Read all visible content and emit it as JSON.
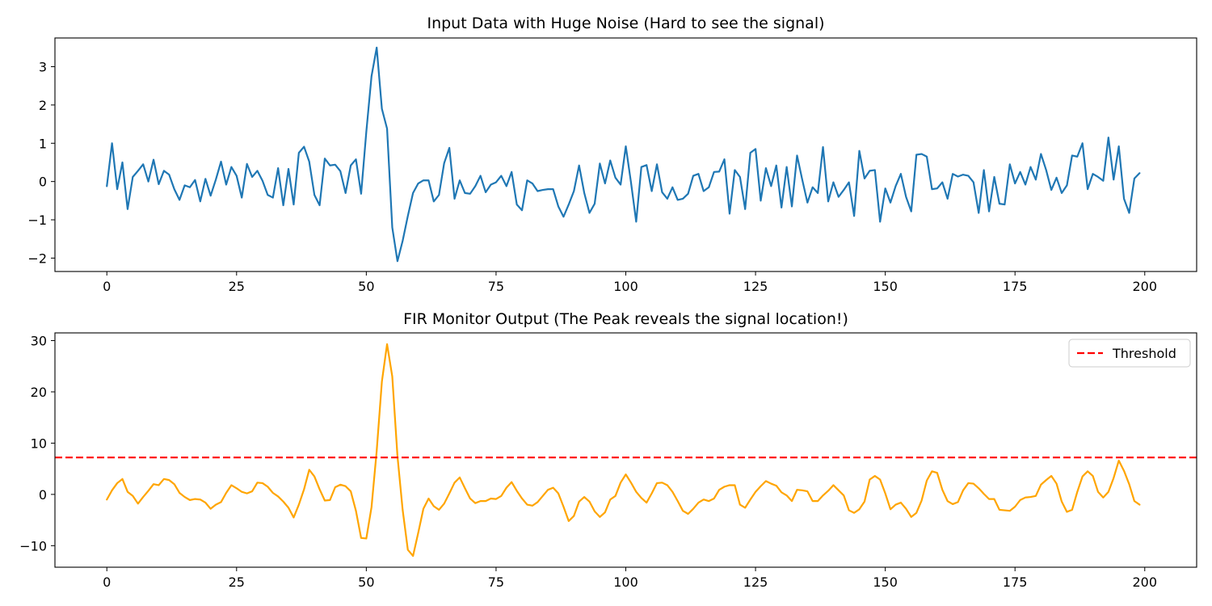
{
  "chart_data": [
    {
      "type": "line",
      "title": "Input Data with Huge Noise (Hard to see the signal)",
      "xlim": [
        -10,
        210
      ],
      "ylim": [
        -2.35,
        3.75
      ],
      "xticks": [
        0,
        25,
        50,
        75,
        100,
        125,
        150,
        175,
        200
      ],
      "yticks": [
        -2,
        -1,
        0,
        1,
        2,
        3
      ],
      "grid": false,
      "series": [
        {
          "color": "#1f77b4",
          "x_start": 0,
          "values": [
            -0.12,
            1.0,
            -0.2,
            0.5,
            -0.72,
            0.12,
            0.28,
            0.45,
            0.0,
            0.57,
            -0.07,
            0.28,
            0.18,
            -0.2,
            -0.48,
            -0.1,
            -0.15,
            0.04,
            -0.52,
            0.07,
            -0.37,
            0.05,
            0.52,
            -0.08,
            0.38,
            0.15,
            -0.42,
            0.46,
            0.12,
            0.28,
            0.02,
            -0.35,
            -0.42,
            0.35,
            -0.62,
            0.33,
            -0.6,
            0.75,
            0.91,
            0.52,
            -0.35,
            -0.62,
            0.6,
            0.42,
            0.44,
            0.27,
            -0.3,
            0.42,
            0.58,
            -0.32,
            1.3,
            2.75,
            3.5,
            1.9,
            1.38,
            -1.2,
            -2.08,
            -1.55,
            -0.9,
            -0.3,
            -0.05,
            0.03,
            0.03,
            -0.52,
            -0.35,
            0.48,
            0.88,
            -0.45,
            0.03,
            -0.3,
            -0.32,
            -0.12,
            0.15,
            -0.28,
            -0.08,
            -0.02,
            0.15,
            -0.12,
            0.25,
            -0.6,
            -0.75,
            0.03,
            -0.05,
            -0.25,
            -0.22,
            -0.2,
            -0.2,
            -0.65,
            -0.92,
            -0.6,
            -0.25,
            0.42,
            -0.3,
            -0.82,
            -0.58,
            0.47,
            -0.05,
            0.55,
            0.1,
            -0.08,
            0.92,
            -0.02,
            -1.05,
            0.38,
            0.43,
            -0.25,
            0.45,
            -0.28,
            -0.45,
            -0.15,
            -0.48,
            -0.45,
            -0.32,
            0.15,
            0.2,
            -0.25,
            -0.15,
            0.25,
            0.26,
            0.58,
            -0.84,
            0.3,
            0.12,
            -0.72,
            0.75,
            0.85,
            -0.5,
            0.35,
            -0.12,
            0.42,
            -0.68,
            0.38,
            -0.65,
            0.68,
            0.05,
            -0.55,
            -0.15,
            -0.3,
            0.9,
            -0.52,
            -0.02,
            -0.4,
            -0.22,
            -0.02,
            -0.9,
            0.8,
            0.08,
            0.28,
            0.3,
            -1.05,
            -0.18,
            -0.55,
            -0.12,
            0.2,
            -0.4,
            -0.78,
            0.7,
            0.72,
            0.65,
            -0.2,
            -0.18,
            -0.02,
            -0.45,
            0.2,
            0.13,
            0.18,
            0.15,
            -0.02,
            -0.82,
            0.3,
            -0.78,
            0.12,
            -0.58,
            -0.6,
            0.45,
            -0.05,
            0.25,
            -0.08,
            0.38,
            0.05,
            0.72,
            0.3,
            -0.22,
            0.1,
            -0.3,
            -0.1,
            0.68,
            0.65,
            1.0,
            -0.2,
            0.2,
            0.12,
            0.02,
            1.15,
            0.05,
            0.92,
            -0.45,
            -0.82,
            0.08,
            0.22
          ]
        }
      ]
    },
    {
      "type": "line",
      "title": "FIR Monitor Output (The Peak reveals the signal location!)",
      "xlim": [
        -10,
        210
      ],
      "ylim": [
        -14.2,
        31.5
      ],
      "xticks": [
        0,
        25,
        50,
        75,
        100,
        125,
        150,
        175,
        200
      ],
      "yticks": [
        -10,
        0,
        10,
        20,
        30
      ],
      "grid": false,
      "legend_placement": "top-right",
      "series": [
        {
          "color": "#ffa500",
          "x_start": 0,
          "values": [
            -1.0,
            0.8,
            2.2,
            3.0,
            0.5,
            -0.3,
            -1.8,
            -0.5,
            0.7,
            2.0,
            1.8,
            3.0,
            2.8,
            2.0,
            0.3,
            -0.5,
            -1.1,
            -0.9,
            -1.0,
            -1.6,
            -2.8,
            -2.0,
            -1.5,
            0.3,
            1.8,
            1.2,
            0.5,
            0.2,
            0.6,
            2.3,
            2.2,
            1.5,
            0.3,
            -0.4,
            -1.4,
            -2.6,
            -4.5,
            -2.0,
            1.0,
            4.8,
            3.5,
            1.0,
            -1.2,
            -1.1,
            1.4,
            1.9,
            1.6,
            0.6,
            -3.2,
            -8.5,
            -8.6,
            -2.5,
            8.5,
            22.0,
            29.3,
            23.0,
            7.5,
            -3.0,
            -10.8,
            -12.0,
            -7.5,
            -2.8,
            -0.8,
            -2.3,
            -3.0,
            -1.8,
            0.2,
            2.3,
            3.3,
            1.2,
            -0.8,
            -1.7,
            -1.3,
            -1.3,
            -0.8,
            -0.9,
            -0.3,
            1.3,
            2.4,
            0.7,
            -0.8,
            -2.0,
            -2.2,
            -1.5,
            -0.3,
            0.9,
            1.3,
            0.2,
            -2.4,
            -5.2,
            -4.2,
            -1.4,
            -0.5,
            -1.4,
            -3.3,
            -4.4,
            -3.5,
            -1.0,
            -0.3,
            2.3,
            3.9,
            2.3,
            0.5,
            -0.7,
            -1.6,
            0.2,
            2.2,
            2.3,
            1.8,
            0.5,
            -1.3,
            -3.2,
            -3.8,
            -2.8,
            -1.6,
            -1.0,
            -1.3,
            -0.8,
            0.9,
            1.5,
            1.8,
            1.8,
            -2.0,
            -2.6,
            -1.0,
            0.5,
            1.6,
            2.6,
            2.1,
            1.7,
            0.4,
            -0.2,
            -1.3,
            0.9,
            0.8,
            0.6,
            -1.3,
            -1.3,
            -0.2,
            0.7,
            1.8,
            0.8,
            -0.2,
            -3.1,
            -3.6,
            -2.9,
            -1.4,
            2.9,
            3.6,
            2.9,
            0.2,
            -2.9,
            -2.0,
            -1.6,
            -2.8,
            -4.4,
            -3.6,
            -1.2,
            2.7,
            4.5,
            4.2,
            0.9,
            -1.3,
            -1.9,
            -1.5,
            0.8,
            2.2,
            2.1,
            1.2,
            0.1,
            -0.9,
            -0.9,
            -3.0,
            -3.1,
            -3.2,
            -2.4,
            -1.1,
            -0.6,
            -0.5,
            -0.3,
            1.9,
            2.8,
            3.6,
            2.1,
            -1.4,
            -3.4,
            -3.0,
            0.5,
            3.5,
            4.5,
            3.6,
            0.5,
            -0.6,
            0.5,
            3.2,
            6.6,
            4.6,
            2.0,
            -1.3,
            -2.0
          ]
        },
        {
          "name": "Threshold",
          "color": "#ff0000",
          "style": "dashed",
          "constant": 7.2
        }
      ]
    }
  ]
}
